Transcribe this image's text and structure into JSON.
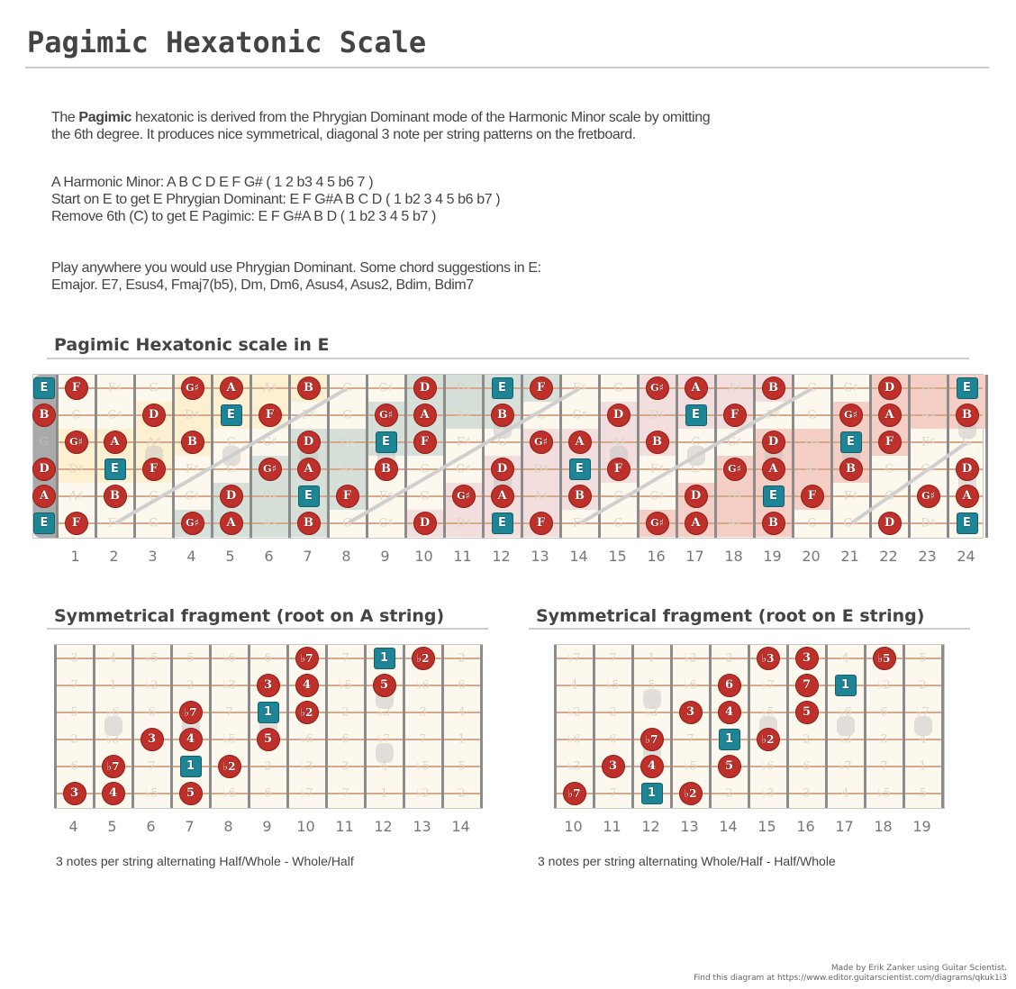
{
  "title": "Pagimic Hexatonic Scale",
  "intro": {
    "pre": "The ",
    "bold": "Pagimic",
    "line1_rest": " hexatonic is derived from the Phrygian Dominant mode of the Harmonic Minor scale by omitting",
    "line2": "the 6th degree. It produces nice symmetrical, diagonal 3 note per string patterns on the fretboard."
  },
  "derivation": [
    "A Harmonic Minor: A B C D E F G# ( 1 2 b3 4 5 b6 7 )",
    "Start on E to get E Phrygian Dominant:  E F G#A B C D ( 1 b2 3 4 5 b6 b7 )",
    "Remove 6th (C) to get E Pagimic: E F G#A B D ( 1 b2 3 4 5 b7 )"
  ],
  "usage": [
    "Play anywhere you would use Phrygian Dominant. Some chord suggestions in E:",
    "Emajor. E7,   Esus4,  Fmaj7(b5),  Dm, Dm6,  Asus4, Asus2,  Bdim, Bdim7"
  ],
  "main_diagram": {
    "heading": "Pagimic Hexatonic scale in E",
    "open_strings": [
      {
        "label": "E",
        "type": "root"
      },
      {
        "label": "B",
        "type": "note"
      },
      {
        "label": "G",
        "type": "ghost"
      },
      {
        "label": "D",
        "type": "note"
      },
      {
        "label": "A",
        "type": "note"
      },
      {
        "label": "E",
        "type": "root"
      }
    ],
    "fret_numbers": [
      "1",
      "2",
      "3",
      "4",
      "5",
      "6",
      "7",
      "8",
      "9",
      "10",
      "11",
      "12",
      "13",
      "14",
      "15",
      "16",
      "17",
      "18",
      "19",
      "20",
      "21",
      "22",
      "23",
      "24"
    ],
    "grid": [
      [
        "F",
        "F♯",
        "G",
        "G♯",
        "A",
        "A♯",
        "B",
        "C",
        "C♯",
        "D",
        "D♯",
        "E",
        "F",
        "F♯",
        "G",
        "G♯",
        "A",
        "A♯",
        "B",
        "C",
        "C♯",
        "D",
        "D♯",
        "E"
      ],
      [
        "C",
        "C♯",
        "D",
        "D♯",
        "E",
        "F",
        "F♯",
        "G",
        "G♯",
        "A",
        "A♯",
        "B",
        "C",
        "C♯",
        "D",
        "D♯",
        "E",
        "F",
        "F♯",
        "G",
        "G♯",
        "A",
        "A♯",
        "B"
      ],
      [
        "G♯",
        "A",
        "A♯",
        "B",
        "C",
        "C♯",
        "D",
        "D♯",
        "E",
        "F",
        "F♯",
        "G",
        "G♯",
        "A",
        "A♯",
        "B",
        "C",
        "C♯",
        "D",
        "D♯",
        "E",
        "F",
        "F♯",
        "G"
      ],
      [
        "D♯",
        "E",
        "F",
        "F♯",
        "G",
        "G♯",
        "A",
        "A♯",
        "B",
        "C",
        "C♯",
        "D",
        "D♯",
        "E",
        "F",
        "F♯",
        "G",
        "G♯",
        "A",
        "A♯",
        "B",
        "C",
        "C♯",
        "D"
      ],
      [
        "A♯",
        "B",
        "C",
        "C♯",
        "D",
        "D♯",
        "E",
        "F",
        "F♯",
        "G",
        "G♯",
        "A",
        "A♯",
        "B",
        "C",
        "C♯",
        "D",
        "D♯",
        "E",
        "F",
        "F♯",
        "G",
        "G♯",
        "A"
      ],
      [
        "F",
        "F♯",
        "G",
        "G♯",
        "A",
        "A♯",
        "B",
        "C",
        "C♯",
        "D",
        "D♯",
        "E",
        "F",
        "F♯",
        "G",
        "G♯",
        "A",
        "A♯",
        "B",
        "C",
        "C♯",
        "D",
        "D♯",
        "E"
      ]
    ],
    "scale_notes": [
      "E",
      "F",
      "G♯",
      "A",
      "B",
      "D"
    ],
    "root": "E"
  },
  "fragment_a": {
    "heading": "Symmetrical fragment (root on A string)",
    "fret_numbers": [
      "4",
      "5",
      "6",
      "7",
      "8",
      "9",
      "10",
      "11",
      "12",
      "13",
      "14"
    ],
    "grid": [
      [
        "3",
        "4",
        "♭5",
        "5",
        "♭6",
        "6",
        "♭7",
        "7",
        "1",
        "♭2",
        "2"
      ],
      [
        "7",
        "1",
        "♭2",
        "2",
        "♭3",
        "3",
        "4",
        "♭5",
        "5",
        "♭6",
        "6"
      ],
      [
        "5",
        "♭6",
        "6",
        "♭7",
        "7",
        "1",
        "♭2",
        "2",
        "♭3",
        "3",
        "4"
      ],
      [
        "2",
        "♭3",
        "3",
        "4",
        "♭5",
        "5",
        "♭6",
        "6",
        "♭7",
        "7",
        "1"
      ],
      [
        "6",
        "♭7",
        "7",
        "1",
        "♭2",
        "2",
        "♭3",
        "3",
        "4",
        "♭5",
        "5"
      ],
      [
        "3",
        "4",
        "♭5",
        "5",
        "♭6",
        "6",
        "♭7",
        "7",
        "1",
        "♭2",
        "2"
      ]
    ],
    "active": [
      [
        6,
        8,
        9
      ],
      [
        5,
        6,
        8
      ],
      [
        3,
        5,
        6
      ],
      [
        2,
        3,
        5
      ],
      [
        1,
        3,
        4
      ],
      [
        0,
        1,
        3
      ]
    ],
    "caption": "3 notes per string alternating Half/Whole - Whole/Half"
  },
  "fragment_e": {
    "heading": "Symmetrical fragment (root on E string)",
    "fret_numbers": [
      "10",
      "11",
      "12",
      "13",
      "14",
      "15",
      "16",
      "17",
      "18",
      "19"
    ],
    "grid": [
      [
        "♭7",
        "7",
        "1",
        "♭2",
        "2",
        "♭3",
        "3",
        "4",
        "♭5",
        "5"
      ],
      [
        "4",
        "♭5",
        "5",
        "♭6",
        "6",
        "♭7",
        "7",
        "1",
        "♭2",
        "2"
      ],
      [
        "♭2",
        "2",
        "♭3",
        "3",
        "4",
        "♭5",
        "5",
        "♭6",
        "6",
        "♭7"
      ],
      [
        "♭6",
        "6",
        "♭7",
        "7",
        "1",
        "♭2",
        "2",
        "♭3",
        "3",
        "4"
      ],
      [
        "♭3",
        "3",
        "4",
        "♭5",
        "5",
        "♭6",
        "6",
        "♭7",
        "7",
        "1"
      ],
      [
        "♭7",
        "7",
        "1",
        "♭2",
        "2",
        "♭3",
        "3",
        "4",
        "♭5",
        "5"
      ]
    ],
    "active": [
      [
        5,
        6,
        8
      ],
      [
        4,
        6,
        7
      ],
      [
        3,
        4,
        6
      ],
      [
        2,
        4,
        5
      ],
      [
        1,
        2,
        4
      ],
      [
        0,
        2,
        3
      ]
    ],
    "caption": "3 notes per string alternating  Whole/Half - Half/Whole"
  },
  "colors": {
    "note": "#c0302a",
    "root": "#1d8595",
    "board": "#fdf8ee",
    "region_yellow": "#fdf0d0",
    "region_green": "#d6e0d8",
    "region_pink": "#f3dede",
    "region_red": "#f5cfc6"
  },
  "footer": {
    "line1": "Made by Erik Zanker using Guitar Scientist.",
    "line2": "Find this diagram at https://www.editor.guitarscientist.com/diagrams/qkuk1i3"
  }
}
